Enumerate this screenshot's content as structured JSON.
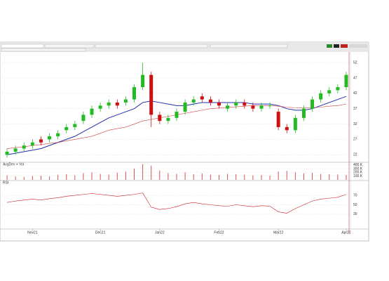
{
  "chart_data": {
    "type": "candlestick",
    "categories": [
      null,
      null,
      null,
      "Nov21",
      null,
      null,
      null,
      null,
      null,
      null,
      null,
      "Dec21",
      null,
      null,
      null,
      null,
      null,
      null,
      "Jan22",
      null,
      null,
      null,
      null,
      null,
      null,
      "Feb22",
      null,
      null,
      null,
      null,
      null,
      null,
      "Mar22",
      null,
      null,
      null,
      null,
      null,
      null,
      null,
      "Apr22"
    ],
    "open": [
      22,
      23,
      24,
      25,
      27,
      27,
      28,
      30,
      31,
      33,
      35,
      37,
      38,
      39,
      39,
      40,
      44,
      48,
      35,
      33,
      34,
      36,
      39,
      41,
      40,
      39,
      37,
      38,
      39,
      38,
      37,
      38,
      36,
      31,
      30,
      34,
      37,
      40,
      42,
      43,
      44
    ],
    "high": [
      24,
      25,
      26,
      27,
      28,
      29,
      30,
      32,
      33,
      36,
      38,
      39,
      40,
      40,
      41,
      45,
      52,
      49,
      36,
      35,
      37,
      40,
      41,
      42,
      41,
      40,
      39,
      40,
      40,
      39,
      39,
      39,
      37,
      32,
      35,
      38,
      41,
      43,
      44,
      45,
      49
    ],
    "low": [
      21,
      22,
      23,
      24,
      25,
      26,
      27,
      29,
      30,
      32,
      34,
      36,
      37,
      37,
      38,
      39,
      43,
      31,
      32,
      32,
      33,
      35,
      38,
      39,
      38,
      37,
      36,
      37,
      37,
      36,
      36,
      37,
      30,
      29,
      29,
      33,
      36,
      39,
      41,
      42,
      43
    ],
    "close": [
      23,
      24,
      25,
      26,
      26,
      28,
      29,
      31,
      32,
      35,
      37,
      38,
      39,
      38,
      40,
      44,
      48,
      35,
      33,
      34,
      36,
      39,
      40,
      40,
      39,
      38,
      38,
      39,
      38,
      37,
      38,
      38,
      31,
      30,
      34,
      37,
      40,
      42,
      43,
      44,
      48
    ],
    "up_color": "#22bb22",
    "down_color": "#cc1111",
    "ylim": [
      20,
      55
    ],
    "yticks": [
      22,
      27,
      32,
      37,
      42,
      47,
      52
    ],
    "grid": true,
    "overlays": [
      {
        "color": "#1f2fa8",
        "values": [
          22,
          22.5,
          23,
          23.5,
          24,
          25,
          26,
          27,
          28,
          29.5,
          31,
          32.5,
          34,
          35,
          36,
          37,
          39,
          39.5,
          39,
          38.5,
          38,
          38,
          38.5,
          39,
          39,
          39,
          39,
          39,
          39,
          38.5,
          38.5,
          38.5,
          38,
          37,
          36.5,
          36.5,
          37,
          38,
          39,
          40,
          41
        ]
      },
      {
        "color": "#d04040",
        "values": [
          24,
          24.3,
          24.6,
          25,
          25.3,
          25.7,
          26,
          26.5,
          27,
          27.5,
          28,
          29,
          30,
          30.5,
          31,
          32,
          33,
          33.5,
          34,
          34.5,
          35,
          35.5,
          36,
          36.5,
          37,
          37.2,
          37.4,
          37.6,
          37.8,
          38,
          38,
          38,
          37.8,
          37.5,
          37.3,
          37.2,
          37.3,
          37.5,
          37.8,
          38,
          38.5
        ]
      }
    ],
    "volume": {
      "label": "AvgDev + Vol",
      "color": "#d9534f",
      "values": [
        120,
        90,
        80,
        100,
        110,
        90,
        130,
        150,
        120,
        180,
        200,
        160,
        140,
        190,
        220,
        300,
        420,
        380,
        250,
        180,
        160,
        200,
        150,
        170,
        140,
        130,
        160,
        150,
        140,
        120,
        130,
        110,
        220,
        240,
        200,
        170,
        180,
        160,
        150,
        140,
        130
      ],
      "ylim": [
        0,
        450
      ],
      "yticks": [
        {
          "value": 100,
          "label": "100.K"
        },
        {
          "value": 200,
          "label": "200.K"
        },
        {
          "value": 300,
          "label": "300.K"
        },
        {
          "value": 400,
          "label": "400.K"
        }
      ]
    },
    "rsi": {
      "label": "RSI",
      "color": "#cc2222",
      "values": [
        55,
        58,
        60,
        62,
        60,
        63,
        65,
        68,
        70,
        72,
        74,
        72,
        70,
        68,
        70,
        72,
        75,
        45,
        40,
        42,
        46,
        52,
        55,
        52,
        50,
        48,
        47,
        50,
        48,
        46,
        48,
        47,
        35,
        32,
        42,
        50,
        58,
        62,
        64,
        66,
        72
      ],
      "ylim": [
        0,
        100
      ],
      "yticks": [
        30,
        50,
        70
      ]
    }
  }
}
